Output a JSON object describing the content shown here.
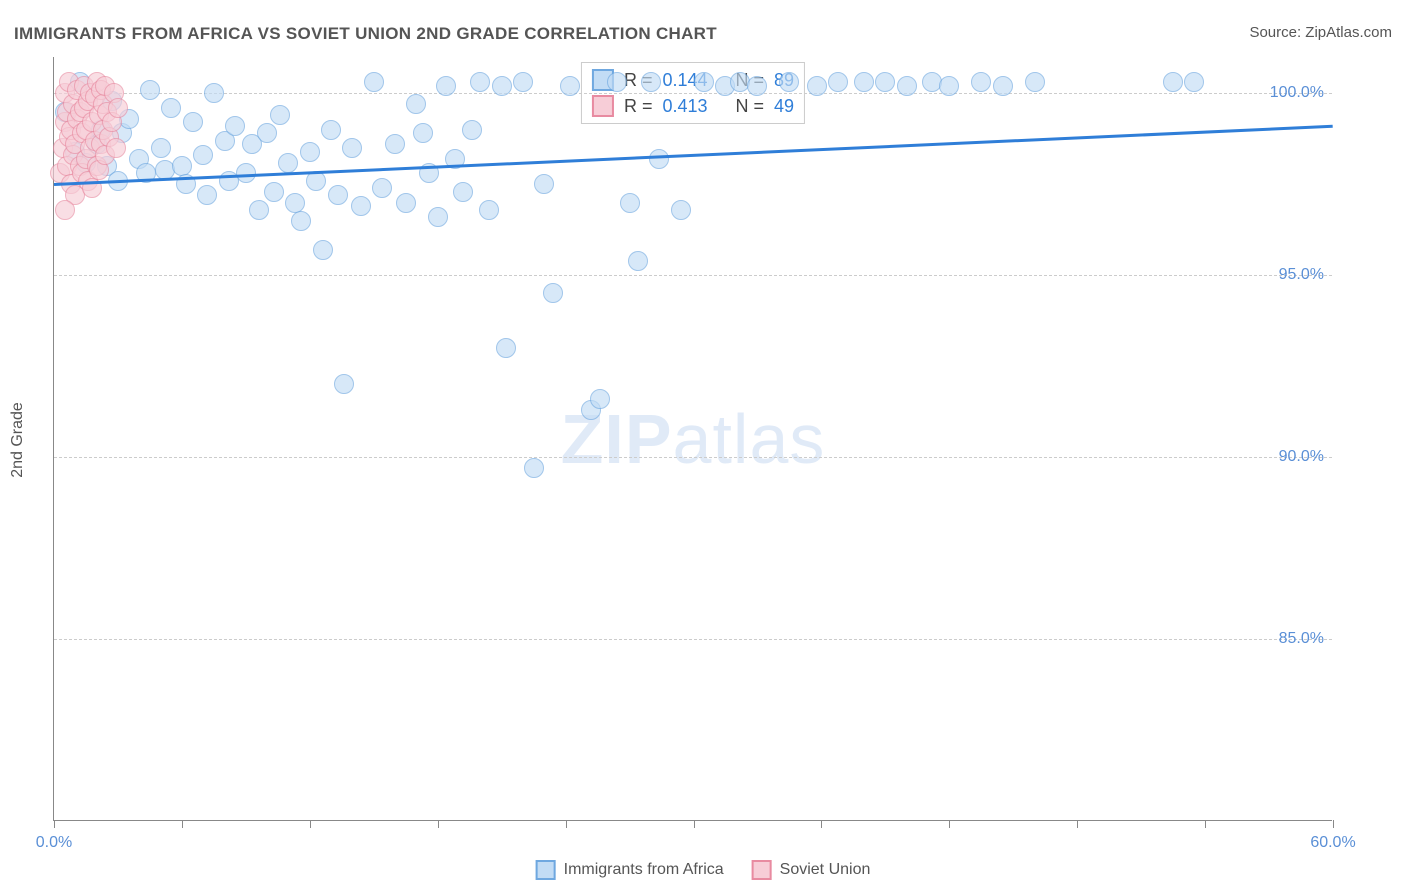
{
  "title": "IMMIGRANTS FROM AFRICA VS SOVIET UNION 2ND GRADE CORRELATION CHART",
  "source": "Source: ZipAtlas.com",
  "y_axis_label": "2nd Grade",
  "watermark_bold": "ZIP",
  "watermark_rest": "atlas",
  "chart": {
    "type": "scatter",
    "xlim": [
      0,
      60
    ],
    "ylim": [
      80,
      101
    ],
    "x_ticks": [
      0,
      6,
      12,
      18,
      24,
      30,
      36,
      42,
      48,
      54,
      60
    ],
    "x_tick_labels": {
      "0": "0.0%",
      "60": "60.0%"
    },
    "y_ticks": [
      85,
      90,
      95,
      100
    ],
    "y_tick_labels": [
      "85.0%",
      "90.0%",
      "95.0%",
      "100.0%"
    ],
    "background_color": "#ffffff",
    "grid_color": "#cccccc",
    "axis_color": "#888888",
    "tick_label_color": "#5a8fd6",
    "trend_line": {
      "x1": 0,
      "y1": 97.5,
      "x2": 60,
      "y2": 99.1,
      "color": "#2f7ed8",
      "width": 3
    },
    "marker_radius": 10,
    "marker_stroke_width": 1.5,
    "series": [
      {
        "name": "Immigrants from Africa",
        "fill": "#c2dcf5",
        "stroke": "#6fa8e0",
        "fill_opacity": 0.65,
        "R": "0.144",
        "N": "89",
        "points": [
          [
            0.5,
            99.5
          ],
          [
            1.0,
            98.4
          ],
          [
            1.2,
            100.3
          ],
          [
            1.5,
            98.1
          ],
          [
            2.0,
            98.6
          ],
          [
            2.2,
            99.0
          ],
          [
            2.5,
            98.0
          ],
          [
            2.7,
            99.8
          ],
          [
            3.0,
            97.6
          ],
          [
            3.2,
            98.9
          ],
          [
            3.5,
            99.3
          ],
          [
            4.0,
            98.2
          ],
          [
            4.3,
            97.8
          ],
          [
            4.5,
            100.1
          ],
          [
            5.0,
            98.5
          ],
          [
            5.2,
            97.9
          ],
          [
            5.5,
            99.6
          ],
          [
            6.0,
            98.0
          ],
          [
            6.2,
            97.5
          ],
          [
            6.5,
            99.2
          ],
          [
            7.0,
            98.3
          ],
          [
            7.2,
            97.2
          ],
          [
            7.5,
            100.0
          ],
          [
            8.0,
            98.7
          ],
          [
            8.2,
            97.6
          ],
          [
            8.5,
            99.1
          ],
          [
            9.0,
            97.8
          ],
          [
            9.3,
            98.6
          ],
          [
            9.6,
            96.8
          ],
          [
            10.0,
            98.9
          ],
          [
            10.3,
            97.3
          ],
          [
            10.6,
            99.4
          ],
          [
            11.0,
            98.1
          ],
          [
            11.3,
            97.0
          ],
          [
            11.6,
            96.5
          ],
          [
            12.0,
            98.4
          ],
          [
            12.3,
            97.6
          ],
          [
            12.6,
            95.7
          ],
          [
            13.0,
            99.0
          ],
          [
            13.3,
            97.2
          ],
          [
            13.6,
            92.0
          ],
          [
            14.0,
            98.5
          ],
          [
            14.4,
            96.9
          ],
          [
            15.0,
            100.3
          ],
          [
            15.4,
            97.4
          ],
          [
            16.0,
            98.6
          ],
          [
            16.5,
            97.0
          ],
          [
            17.0,
            99.7
          ],
          [
            17.3,
            98.9
          ],
          [
            17.6,
            97.8
          ],
          [
            18.0,
            96.6
          ],
          [
            18.4,
            100.2
          ],
          [
            18.8,
            98.2
          ],
          [
            19.2,
            97.3
          ],
          [
            19.6,
            99.0
          ],
          [
            20.0,
            100.3
          ],
          [
            20.4,
            96.8
          ],
          [
            21.0,
            100.2
          ],
          [
            21.2,
            93.0
          ],
          [
            22.0,
            100.3
          ],
          [
            22.5,
            89.7
          ],
          [
            23.0,
            97.5
          ],
          [
            23.4,
            94.5
          ],
          [
            24.2,
            100.2
          ],
          [
            25.2,
            91.3
          ],
          [
            25.6,
            91.6
          ],
          [
            26.4,
            100.3
          ],
          [
            27.0,
            97.0
          ],
          [
            27.4,
            95.4
          ],
          [
            28.0,
            100.3
          ],
          [
            28.4,
            98.2
          ],
          [
            29.4,
            96.8
          ],
          [
            30.5,
            100.3
          ],
          [
            31.5,
            100.2
          ],
          [
            32.2,
            100.3
          ],
          [
            33.0,
            100.2
          ],
          [
            34.5,
            100.3
          ],
          [
            35.8,
            100.2
          ],
          [
            36.8,
            100.3
          ],
          [
            38.0,
            100.3
          ],
          [
            39.0,
            100.3
          ],
          [
            40.0,
            100.2
          ],
          [
            41.2,
            100.3
          ],
          [
            42.0,
            100.2
          ],
          [
            43.5,
            100.3
          ],
          [
            44.5,
            100.2
          ],
          [
            46.0,
            100.3
          ],
          [
            52.5,
            100.3
          ],
          [
            53.5,
            100.3
          ]
        ]
      },
      {
        "name": "Soviet Union",
        "fill": "#f7cdd7",
        "stroke": "#e88ba1",
        "fill_opacity": 0.65,
        "R": "0.413",
        "N": "49",
        "points": [
          [
            0.3,
            97.8
          ],
          [
            0.4,
            98.5
          ],
          [
            0.5,
            99.2
          ],
          [
            0.5,
            100.0
          ],
          [
            0.6,
            98.0
          ],
          [
            0.6,
            99.5
          ],
          [
            0.7,
            98.8
          ],
          [
            0.7,
            100.3
          ],
          [
            0.8,
            97.5
          ],
          [
            0.8,
            99.0
          ],
          [
            0.9,
            98.3
          ],
          [
            0.9,
            99.7
          ],
          [
            1.0,
            97.2
          ],
          [
            1.0,
            98.6
          ],
          [
            1.1,
            99.3
          ],
          [
            1.1,
            100.1
          ],
          [
            1.2,
            98.0
          ],
          [
            1.2,
            99.5
          ],
          [
            1.3,
            97.8
          ],
          [
            1.3,
            98.9
          ],
          [
            1.4,
            99.6
          ],
          [
            1.4,
            100.2
          ],
          [
            1.5,
            98.2
          ],
          [
            1.5,
            99.0
          ],
          [
            1.6,
            97.6
          ],
          [
            1.6,
            99.8
          ],
          [
            1.7,
            98.5
          ],
          [
            1.7,
            100.0
          ],
          [
            1.8,
            97.4
          ],
          [
            1.8,
            99.2
          ],
          [
            1.9,
            98.7
          ],
          [
            1.9,
            99.9
          ],
          [
            2.0,
            98.0
          ],
          [
            2.0,
            100.3
          ],
          [
            2.1,
            97.9
          ],
          [
            2.1,
            99.4
          ],
          [
            2.2,
            98.6
          ],
          [
            2.2,
            100.1
          ],
          [
            2.3,
            99.0
          ],
          [
            2.3,
            99.7
          ],
          [
            2.4,
            98.3
          ],
          [
            2.4,
            100.2
          ],
          [
            2.5,
            99.5
          ],
          [
            2.6,
            98.8
          ],
          [
            2.7,
            99.2
          ],
          [
            2.8,
            100.0
          ],
          [
            2.9,
            98.5
          ],
          [
            3.0,
            99.6
          ],
          [
            0.5,
            96.8
          ]
        ]
      }
    ]
  },
  "stats_box": {
    "rows": [
      {
        "swatch_fill": "#c2dcf5",
        "swatch_stroke": "#6fa8e0",
        "r_label": "R =",
        "r_val": "0.144",
        "n_label": "N =",
        "n_val": "89"
      },
      {
        "swatch_fill": "#f7cdd7",
        "swatch_stroke": "#e88ba1",
        "r_label": "R =",
        "r_val": "0.413",
        "n_label": "N =",
        "n_val": "49"
      }
    ]
  },
  "legend": {
    "items": [
      {
        "label": "Immigrants from Africa",
        "fill": "#c2dcf5",
        "stroke": "#6fa8e0"
      },
      {
        "label": "Soviet Union",
        "fill": "#f7cdd7",
        "stroke": "#e88ba1"
      }
    ]
  }
}
